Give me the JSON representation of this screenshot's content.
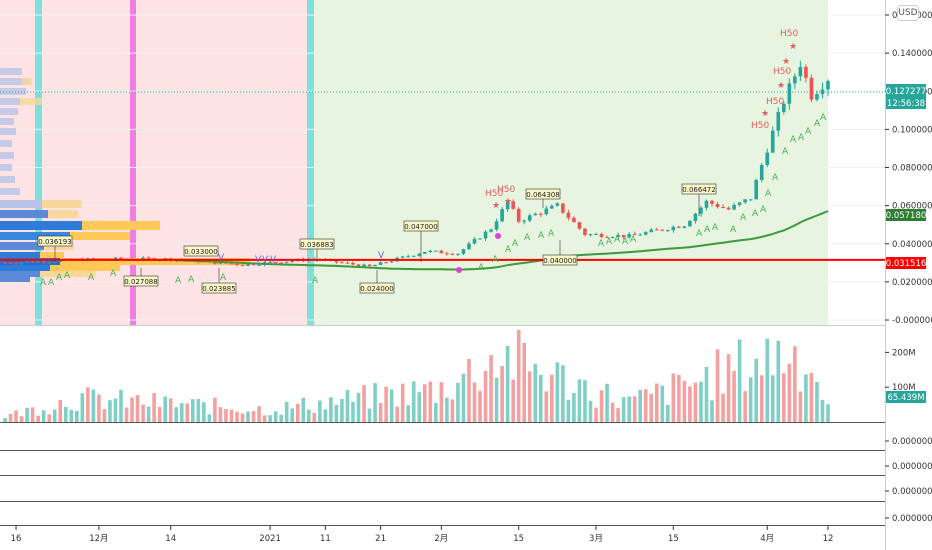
{
  "currency_button": "USD",
  "colors": {
    "up": "#26a69a",
    "down": "#ef5350",
    "volume_up": "#7fcfc6",
    "volume_down": "#f3a1a0",
    "ma_green": "#3d9a3d",
    "support_red": "#ff0000",
    "bg_red": "#fde3e3",
    "bg_green": "#e6f4e0",
    "stripe_cyan": "#7ee0d8",
    "stripe_pink": "#ee7ee0",
    "label_yellow_bg": "#fbf6c8",
    "signal_purple": "#6a5ee8",
    "signal_magenta": "#e040e0"
  },
  "price_panel": {
    "y_ticks": [
      "0.160000",
      "0.140000",
      "0.120000",
      "0.100000",
      "0.080000",
      "0.060000",
      "0.040000",
      "0.020000",
      "-0.000000"
    ],
    "tags": {
      "last_price": "0.127277",
      "countdown": "12:56:38",
      "ma": "0.057180",
      "support": "0.031516"
    },
    "labels": {
      "l1": "0.036193",
      "l2": "0.033000",
      "l3": "0.027088",
      "l4": "0.023885",
      "l5": "0.036883",
      "l6": "0.024000",
      "l7": "0.047000",
      "l8": "0.064308",
      "l9": "0.040000",
      "l10": "0.066472"
    },
    "h50": "H50"
  },
  "volume_panel": {
    "y_ticks": [
      "200M",
      "100M"
    ],
    "tag": "65.439M"
  },
  "sub_panels": [
    "0.000000",
    "0.000000",
    "0.000000",
    "0.000000"
  ],
  "x_axis": {
    "labels": [
      "16",
      "12月",
      "14",
      "2021",
      "11",
      "21",
      "2月",
      "15",
      "3月",
      "15",
      "4月",
      "12"
    ]
  },
  "chart_data": {
    "type": "candlestick",
    "ylim": [
      0,
      0.16
    ],
    "support_level": 0.031516,
    "moving_average_last": 0.05718,
    "last_price": 0.127277,
    "control_points": [
      {
        "date": "11-14",
        "price": 0.03
      },
      {
        "date": "12-01",
        "price": 0.032
      },
      {
        "date": "12-14",
        "price": 0.032
      },
      {
        "date": "12-27",
        "price": 0.029
      },
      {
        "date": "01-09",
        "price": 0.032
      },
      {
        "date": "01-19",
        "price": 0.028
      },
      {
        "date": "01-29",
        "price": 0.036
      },
      {
        "date": "02-04",
        "price": 0.035
      },
      {
        "date": "02-10",
        "price": 0.048
      },
      {
        "date": "02-13",
        "price": 0.062
      },
      {
        "date": "02-15",
        "price": 0.052
      },
      {
        "date": "02-22",
        "price": 0.06
      },
      {
        "date": "02-27",
        "price": 0.045
      },
      {
        "date": "03-07",
        "price": 0.044
      },
      {
        "date": "03-17",
        "price": 0.05
      },
      {
        "date": "03-21",
        "price": 0.062
      },
      {
        "date": "03-25",
        "price": 0.058
      },
      {
        "date": "03-29",
        "price": 0.064
      },
      {
        "date": "04-01",
        "price": 0.09
      },
      {
        "date": "04-04",
        "price": 0.115
      },
      {
        "date": "04-07",
        "price": 0.135
      },
      {
        "date": "04-09",
        "price": 0.118
      },
      {
        "date": "04-12",
        "price": 0.127
      }
    ],
    "volume_control_points": [
      {
        "date": "11-14",
        "volume": 20
      },
      {
        "date": "11-27",
        "volume": 85
      },
      {
        "date": "01-01",
        "volume": 45
      },
      {
        "date": "02-01",
        "volume": 120
      },
      {
        "date": "02-12",
        "volume": 240
      },
      {
        "date": "02-22",
        "volume": 160
      },
      {
        "date": "03-07",
        "volume": 70
      },
      {
        "date": "03-17",
        "volume": 130
      },
      {
        "date": "04-04",
        "volume": 250
      },
      {
        "date": "04-08",
        "volume": 230
      },
      {
        "date": "04-12",
        "volume": 65.439
      }
    ],
    "volume_unit": "M",
    "volume_ylim": [
      0,
      250
    ]
  }
}
